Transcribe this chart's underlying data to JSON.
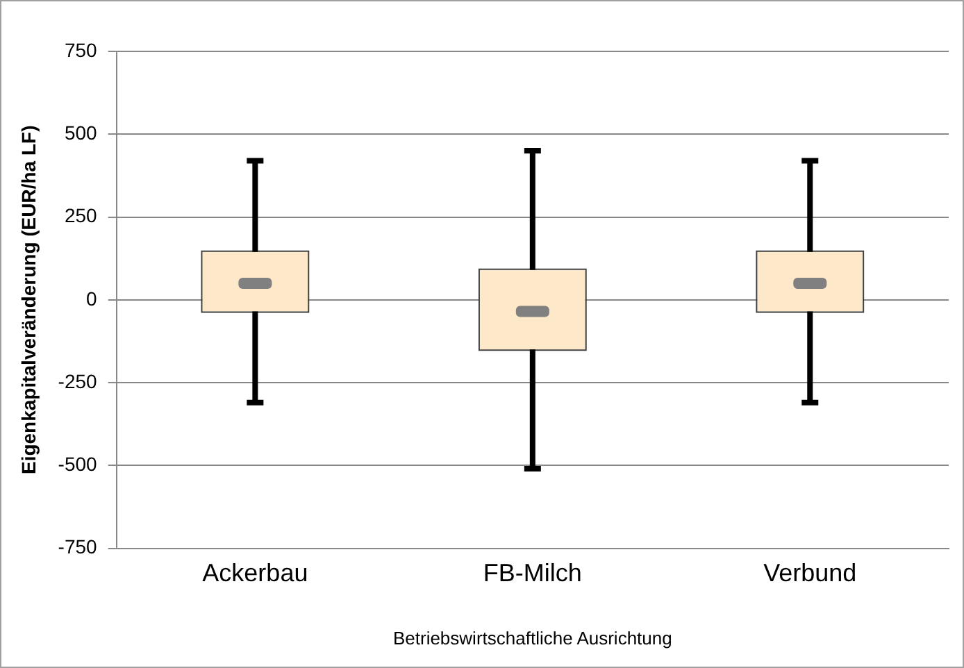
{
  "chart_data": {
    "type": "box",
    "xlabel": "Betriebswirtschaftliche Ausrichtung",
    "ylabel": "Eigenkapitalveränderung (EUR/ha LF)",
    "categories": [
      "Ackerbau",
      "FB-Milch",
      "Verbund"
    ],
    "boxes": [
      {
        "low": -310,
        "q1": -35,
        "median": 50,
        "q3": 145,
        "high": 420
      },
      {
        "low": -510,
        "q1": -150,
        "median": -35,
        "q3": 90,
        "high": 450
      },
      {
        "low": -310,
        "q1": -35,
        "median": 50,
        "q3": 145,
        "high": 420
      }
    ],
    "color": "#fde9c9",
    "ylim": [
      -750,
      750
    ],
    "yticks": [
      -750,
      -500,
      -250,
      0,
      250,
      500,
      750
    ],
    "grid": "y",
    "legend": false
  }
}
